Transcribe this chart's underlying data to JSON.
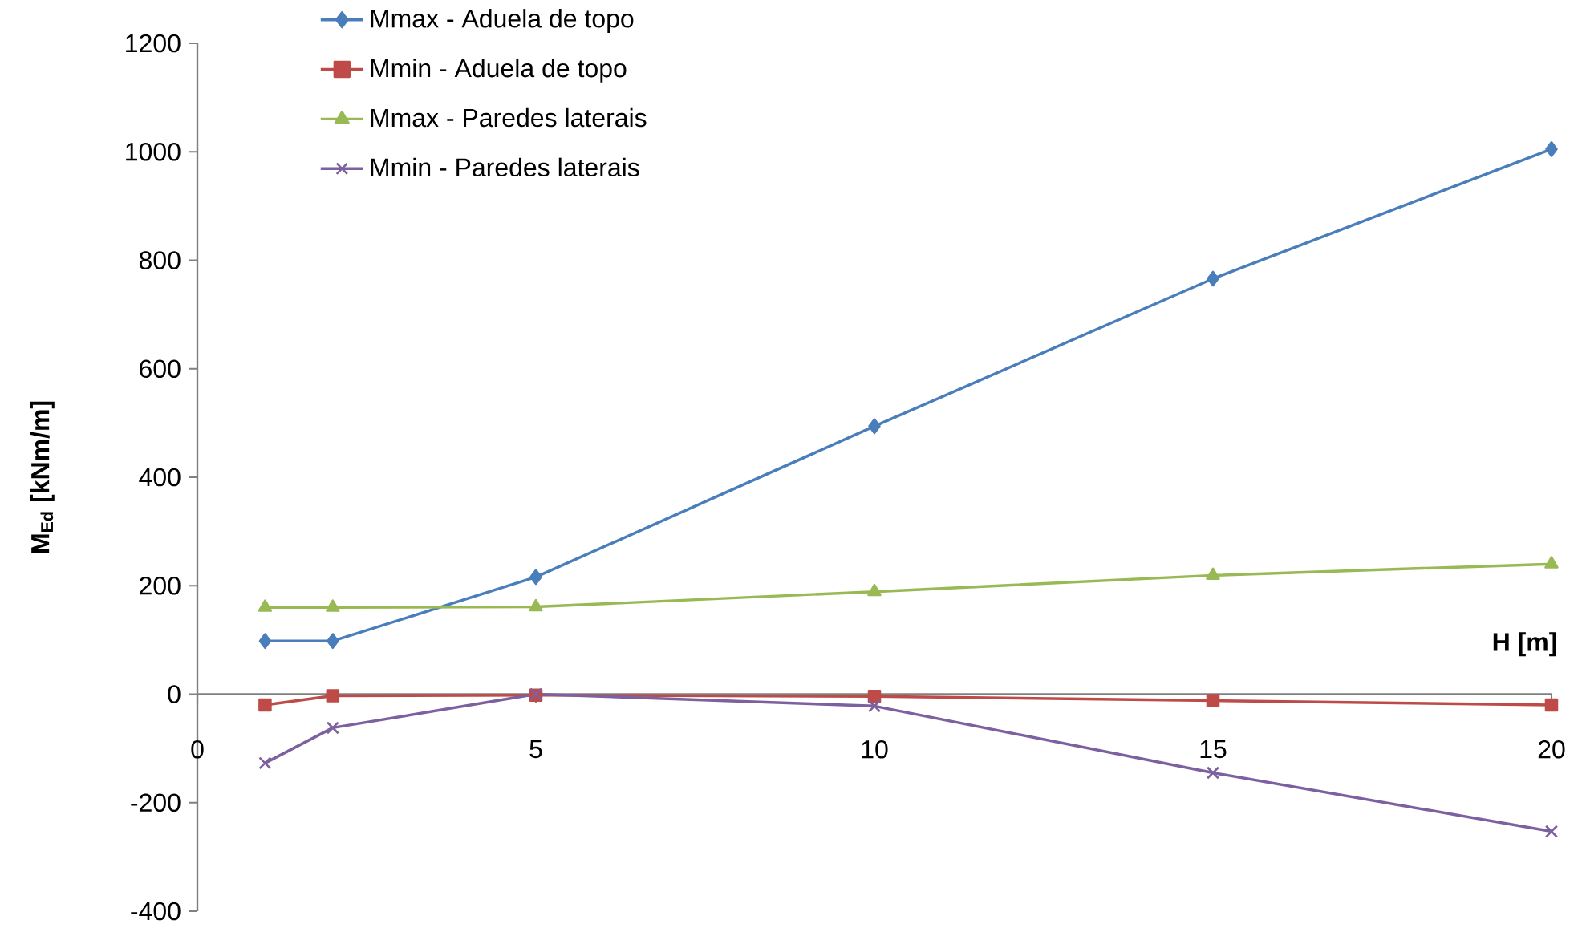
{
  "chart_data": {
    "type": "line",
    "xlabel": "H [m]",
    "ylabel": "M$_{Ed}$ [kNm/m]",
    "x": [
      1,
      2,
      5,
      10,
      15,
      20
    ],
    "series": [
      {
        "name": "Mmax - Aduela de topo",
        "color": "#4a7ebb",
        "marker": "diamond",
        "values": [
          98,
          98,
          216,
          494,
          766,
          1005
        ]
      },
      {
        "name": "Mmin - Aduela de topo",
        "color": "#be4b48",
        "marker": "square",
        "values": [
          -20,
          -3,
          -2,
          -4,
          -12,
          -20
        ]
      },
      {
        "name": "Mmax - Paredes laterais",
        "color": "#98b954",
        "marker": "triangle",
        "values": [
          160,
          160,
          161,
          189,
          219,
          240
        ]
      },
      {
        "name": "Mmin - Paredes laterais",
        "color": "#7d60a0",
        "marker": "cross",
        "values": [
          -127,
          -62,
          0,
          -22,
          -145,
          -253
        ]
      }
    ],
    "xlim": [
      0,
      20
    ],
    "xticks": [
      0,
      5,
      10,
      15,
      20
    ],
    "ylim": [
      -400,
      1200
    ],
    "yticks": [
      -400,
      -200,
      0,
      200,
      400,
      600,
      800,
      1000,
      1200
    ],
    "grid": false,
    "legend": "top"
  }
}
